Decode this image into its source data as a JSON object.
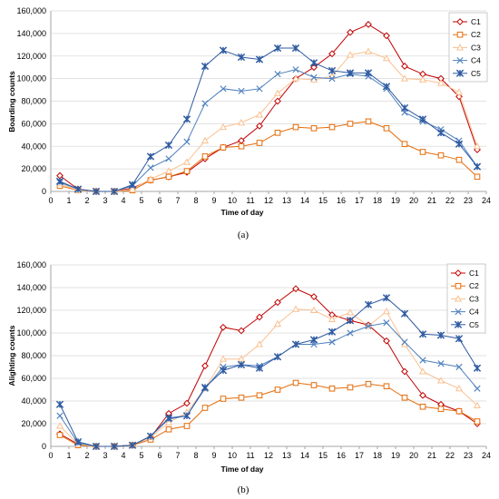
{
  "chart_data": [
    {
      "type": "line",
      "caption": "(a)",
      "title": "",
      "xlabel": "Time of day",
      "ylabel": "Boarding counts",
      "xlim": [
        0,
        24
      ],
      "ylim": [
        0,
        160000
      ],
      "xticks": [
        0,
        1,
        2,
        3,
        4,
        5,
        6,
        7,
        8,
        9,
        10,
        11,
        12,
        13,
        14,
        15,
        16,
        17,
        18,
        19,
        20,
        21,
        22,
        23,
        24
      ],
      "yticks": [
        0,
        20000,
        40000,
        60000,
        80000,
        100000,
        120000,
        140000,
        160000
      ],
      "ytick_labels": [
        "0",
        "20,000",
        "40,000",
        "60,000",
        "80,000",
        "100,000",
        "120,000",
        "140,000",
        "160,000"
      ],
      "grid": "horizontal",
      "legend": "top-right",
      "x": [
        0.5,
        1.5,
        2.5,
        3.5,
        4.5,
        5.5,
        6.5,
        7.5,
        8.5,
        9.5,
        10.5,
        11.5,
        12.5,
        13.5,
        14.5,
        15.5,
        16.5,
        17.5,
        18.5,
        19.5,
        20.5,
        21.5,
        22.5,
        23.5
      ],
      "series": [
        {
          "name": "C1",
          "color": "#c00000",
          "marker": "diamond",
          "values": [
            14000,
            2000,
            0,
            0,
            3000,
            10000,
            13000,
            17000,
            29000,
            39000,
            45000,
            58000,
            80000,
            100000,
            110000,
            122000,
            141000,
            148000,
            138000,
            111000,
            104000,
            100000,
            84000,
            37000
          ]
        },
        {
          "name": "C2",
          "color": "#e46c0a",
          "marker": "square",
          "values": [
            5000,
            1000,
            0,
            0,
            1000,
            10000,
            13000,
            18000,
            31000,
            39000,
            40000,
            43000,
            52000,
            57000,
            56000,
            57000,
            60000,
            62000,
            56000,
            42000,
            35000,
            32000,
            28000,
            13000
          ]
        },
        {
          "name": "C3",
          "color": "#fac090",
          "marker": "triangle",
          "values": [
            7000,
            1000,
            0,
            0,
            2000,
            11000,
            18000,
            26000,
            45000,
            57000,
            61000,
            68000,
            87000,
            100000,
            99000,
            102000,
            121000,
            124000,
            118000,
            100000,
            99000,
            96000,
            88000,
            40000
          ]
        },
        {
          "name": "C4",
          "color": "#4f81bd",
          "marker": "x",
          "values": [
            8000,
            2000,
            0,
            0,
            5000,
            21000,
            29000,
            44000,
            78000,
            91000,
            89000,
            91000,
            104000,
            108000,
            101000,
            100000,
            104000,
            102000,
            91000,
            70000,
            62000,
            55000,
            45000,
            22000
          ]
        },
        {
          "name": "C5",
          "color": "#2e5aa0",
          "marker": "star",
          "values": [
            9000,
            2000,
            0,
            0,
            6000,
            31000,
            41000,
            64000,
            111000,
            125000,
            119000,
            117000,
            127000,
            127000,
            114000,
            107000,
            105000,
            105000,
            93000,
            74000,
            64000,
            52000,
            42000,
            22000
          ]
        }
      ]
    },
    {
      "type": "line",
      "caption": "(b)",
      "title": "",
      "xlabel": "Time of day",
      "ylabel": "Alighting counts",
      "xlim": [
        0,
        24
      ],
      "ylim": [
        0,
        160000
      ],
      "xticks": [
        0,
        1,
        2,
        3,
        4,
        5,
        6,
        7,
        8,
        9,
        10,
        11,
        12,
        13,
        14,
        15,
        16,
        17,
        18,
        19,
        20,
        21,
        22,
        23,
        24
      ],
      "yticks": [
        0,
        20000,
        40000,
        60000,
        80000,
        100000,
        120000,
        140000,
        160000
      ],
      "ytick_labels": [
        "0",
        "20,000",
        "40,000",
        "60,000",
        "80,000",
        "100,000",
        "120,000",
        "140,000",
        "160,000"
      ],
      "grid": "horizontal",
      "legend": "top-right",
      "x": [
        0.5,
        1.5,
        2.5,
        3.5,
        4.5,
        5.5,
        6.5,
        7.5,
        8.5,
        9.5,
        10.5,
        11.5,
        12.5,
        13.5,
        14.5,
        15.5,
        16.5,
        17.5,
        18.5,
        19.5,
        20.5,
        21.5,
        22.5,
        23.5
      ],
      "series": [
        {
          "name": "C1",
          "color": "#c00000",
          "marker": "diamond",
          "values": [
            11000,
            2000,
            0,
            0,
            1000,
            8000,
            29000,
            38000,
            71000,
            105000,
            102000,
            114000,
            127000,
            139000,
            132000,
            116000,
            111000,
            107000,
            93000,
            66000,
            45000,
            37000,
            31000,
            20000
          ]
        },
        {
          "name": "C2",
          "color": "#e46c0a",
          "marker": "square",
          "values": [
            10000,
            1000,
            0,
            0,
            1000,
            6000,
            15000,
            18000,
            34000,
            42000,
            43000,
            45000,
            50000,
            56000,
            54000,
            51000,
            52000,
            55000,
            53000,
            43000,
            35000,
            33000,
            31000,
            22000
          ]
        },
        {
          "name": "C3",
          "color": "#fac090",
          "marker": "triangle",
          "values": [
            18000,
            2000,
            0,
            0,
            1000,
            8000,
            21000,
            30000,
            51000,
            77000,
            77000,
            90000,
            108000,
            121000,
            120000,
            112000,
            118000,
            106000,
            119000,
            90000,
            66000,
            58000,
            51000,
            36000
          ]
        },
        {
          "name": "C4",
          "color": "#4f81bd",
          "marker": "x",
          "values": [
            27000,
            3000,
            0,
            0,
            1000,
            9000,
            24000,
            27000,
            51000,
            70000,
            72000,
            71000,
            79000,
            90000,
            90000,
            92000,
            100000,
            106000,
            109000,
            92000,
            76000,
            73000,
            70000,
            51000
          ]
        },
        {
          "name": "C5",
          "color": "#2e5aa0",
          "marker": "star",
          "values": [
            37000,
            4000,
            0,
            0,
            1000,
            9000,
            25000,
            27000,
            52000,
            67000,
            72000,
            69000,
            79000,
            90000,
            94000,
            101000,
            111000,
            125000,
            131000,
            117000,
            99000,
            98000,
            95000,
            69000
          ]
        }
      ]
    }
  ]
}
